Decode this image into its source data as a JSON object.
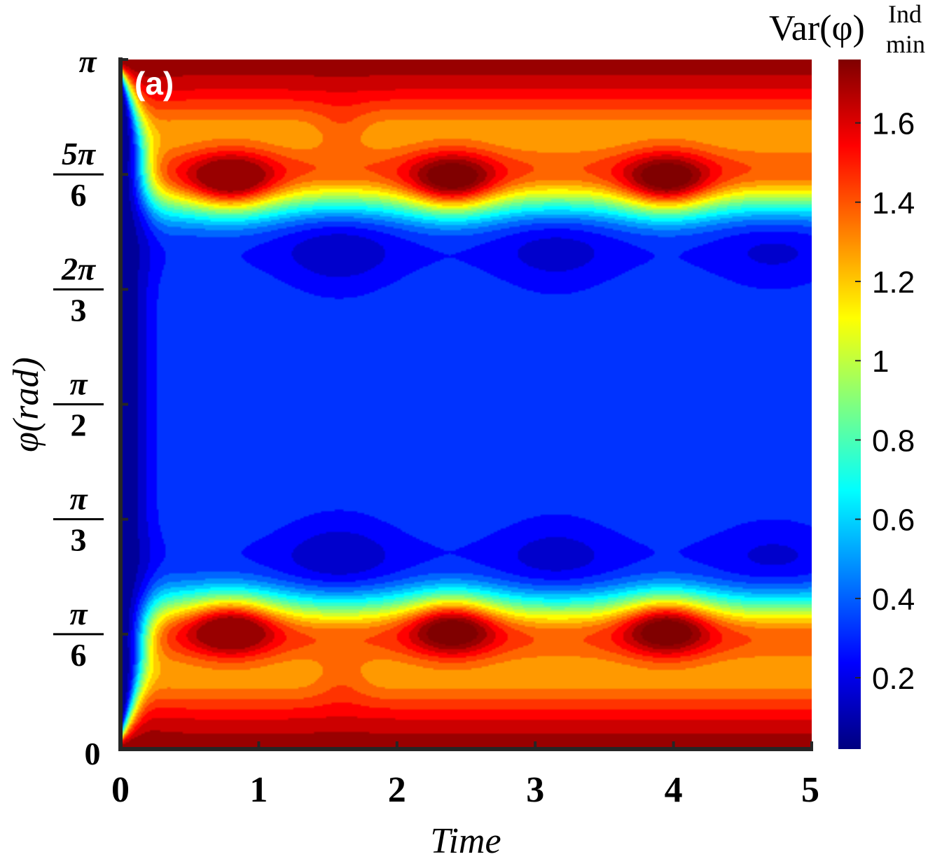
{
  "chart_data": {
    "type": "heatmap",
    "panel_label": "(a)",
    "xlabel": "Time",
    "ylabel": "φ(rad)",
    "xlim": [
      0,
      5
    ],
    "ylim": [
      0,
      3.14159
    ],
    "x_ticks": [
      "0",
      "1",
      "2",
      "3",
      "4",
      "5"
    ],
    "y_ticks": [
      {
        "value": 0,
        "num": "0",
        "den": ""
      },
      {
        "value": 0.5236,
        "num": "π",
        "den": "6"
      },
      {
        "value": 1.0472,
        "num": "π",
        "den": "3"
      },
      {
        "value": 1.5708,
        "num": "π",
        "den": "2"
      },
      {
        "value": 2.0944,
        "num": "2π",
        "den": "3"
      },
      {
        "value": 2.618,
        "num": "5π",
        "den": "6"
      },
      {
        "value": 3.14159,
        "num": "π",
        "den": ""
      }
    ],
    "colorbar": {
      "title": "Var(φ)",
      "title_sup": "Ind",
      "title_sub": "min",
      "range": [
        0.02,
        1.76
      ],
      "ticks": [
        "0.2",
        "0.4",
        "0.6",
        "0.8",
        "1",
        "1.2",
        "1.4",
        "1.6"
      ],
      "colormap": "jet"
    },
    "description_of_field": {
      "levels": 20,
      "max_value_at_edges": 1.76,
      "min_value_near_t0": 0.02,
      "bright_spots_times": [
        0.8,
        2.4,
        3.95
      ],
      "dark_spots_times": [
        1.58,
        3.15,
        4.72
      ]
    }
  }
}
